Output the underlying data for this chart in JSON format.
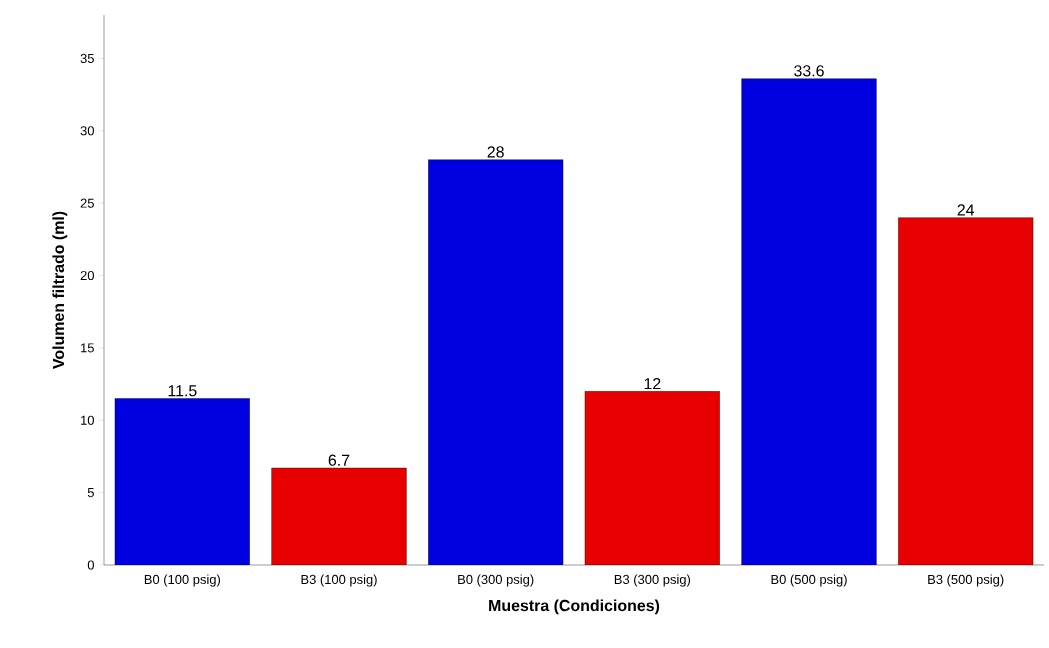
{
  "chart_data": {
    "type": "bar",
    "xlabel": "Muestra (Condiciones)",
    "ylabel": "Volumen filtrado (ml)",
    "categories": [
      "B0 (100 psig)",
      "B3 (100 psig)",
      "B0 (300 psig)",
      "B3 (300 psig)",
      "B0 (500 psig)",
      "B3 (500 psig)"
    ],
    "values": [
      11.5,
      6.7,
      28,
      12,
      33.6,
      24
    ],
    "colors": [
      "#0000e0",
      "#e80000",
      "#0000e0",
      "#e80000",
      "#0000e0",
      "#e80000"
    ],
    "ylim": [
      0,
      38
    ],
    "yticks": [
      0,
      5,
      10,
      15,
      20,
      25,
      30,
      35
    ],
    "data_labels": true,
    "grid": false
  }
}
